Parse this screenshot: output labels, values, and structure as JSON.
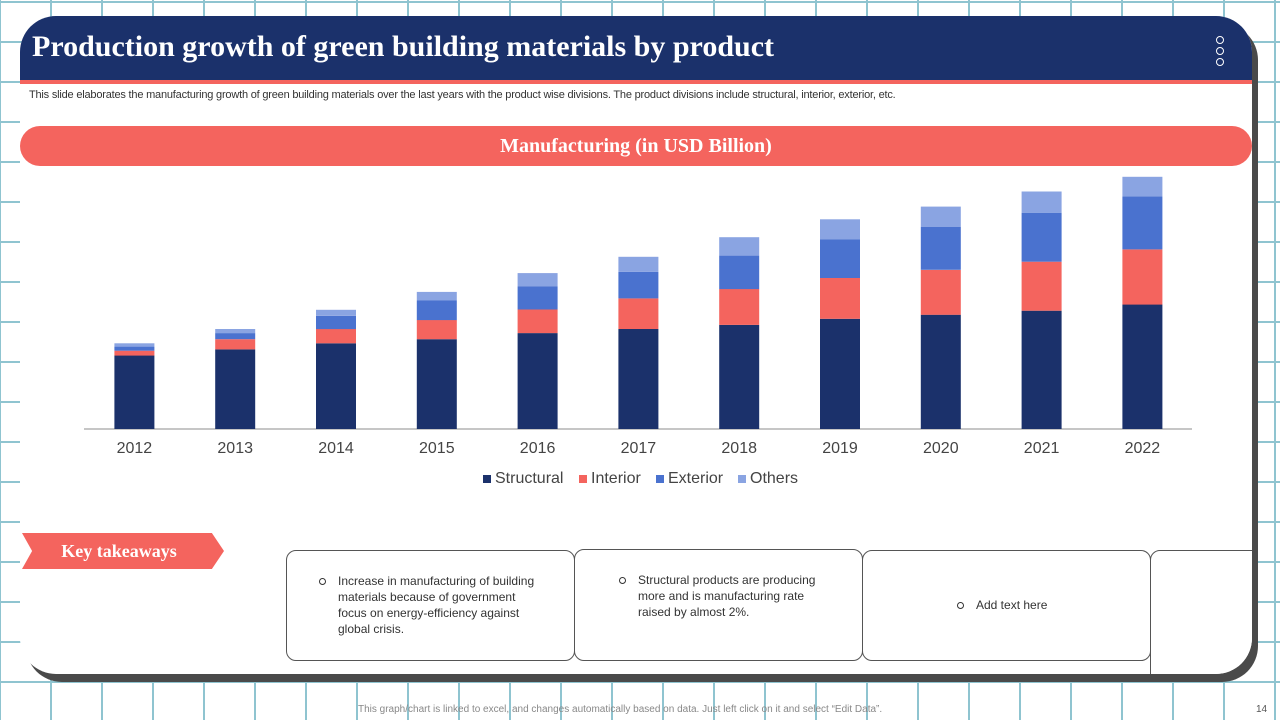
{
  "header": {
    "title": "Production growth of green building materials by product",
    "menu_icon": "vertical-dots-icon"
  },
  "description": "This slide elaborates the manufacturing growth of green building materials over the last years with the product wise divisions. The product divisions include structural, interior, exterior, etc.",
  "banner": {
    "label": "Manufacturing (in USD Billion)"
  },
  "chart_data": {
    "type": "bar",
    "stacked": true,
    "title": "Manufacturing (in USD Billion)",
    "categories": [
      "2012",
      "2013",
      "2014",
      "2015",
      "2016",
      "2017",
      "2018",
      "2019",
      "2020",
      "2021",
      "2022"
    ],
    "series": [
      {
        "name": "Structural",
        "color": "#1b316b",
        "values": [
          18,
          19.5,
          21,
          22,
          23.5,
          24.5,
          25.5,
          27,
          28,
          29,
          30.5
        ]
      },
      {
        "name": "Interior",
        "color": "#f4645e",
        "values": [
          1.2,
          2.5,
          3.5,
          4.7,
          5.8,
          7.5,
          8.8,
          10,
          11,
          12,
          13.5
        ]
      },
      {
        "name": "Exterior",
        "color": "#4a72cf",
        "values": [
          1,
          1.5,
          3.2,
          4.8,
          5.7,
          6.5,
          8.2,
          9.5,
          10.5,
          12,
          13
        ]
      },
      {
        "name": "Others",
        "color": "#8aa4e2",
        "values": [
          0.8,
          1,
          1.5,
          2.1,
          3.2,
          3.7,
          4.5,
          4.9,
          5,
          5.2,
          4.8
        ]
      }
    ],
    "xlabel": "",
    "ylabel": "",
    "ylim": [
      0,
      62
    ],
    "legend_position": "bottom",
    "grid": false
  },
  "takeaways": {
    "label": "Key takeaways",
    "items": [
      "Increase in manufacturing of building materials because of government  focus on energy-efficiency against global crisis.",
      "Structural products are producing more and is manufacturing rate raised by almost 2%.",
      "Add text here"
    ]
  },
  "footer": {
    "note": "This graph/chart is linked to excel, and changes automatically based on data. Just left click on it and select “Edit Data”.",
    "page_number": "14"
  }
}
